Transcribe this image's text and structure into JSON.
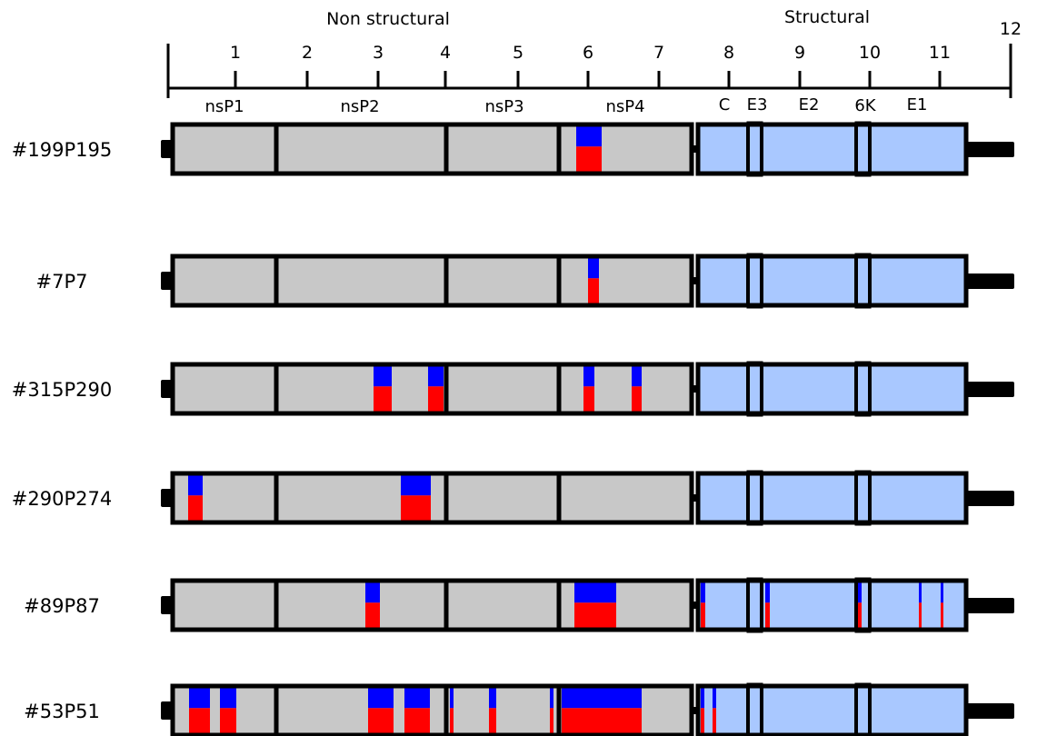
{
  "header": {
    "non_structural": "Non structural",
    "structural": "Structural"
  },
  "scale": {
    "ticks": [
      "1",
      "2",
      "3",
      "4",
      "5",
      "6",
      "7",
      "8",
      "9",
      "10",
      "11",
      "12"
    ]
  },
  "genes": {
    "nonstructural": [
      "nsP1",
      "nsP2",
      "nsP3",
      "nsP4"
    ],
    "structural": [
      "C",
      "E3",
      "E2",
      "6K",
      "E1"
    ]
  },
  "colors": {
    "nonstructural_fill": "#c8c8c8",
    "structural_fill": "#a9c8ff",
    "upper_mark": "#0000ff",
    "lower_mark": "#ff0000",
    "outline": "#000000"
  },
  "samples": [
    {
      "label": "#199P195"
    },
    {
      "label": "#7P7"
    },
    {
      "label": "#315P290"
    },
    {
      "label": "#290P274"
    },
    {
      "label": "#89P87"
    },
    {
      "label": "#53P51"
    }
  ]
}
